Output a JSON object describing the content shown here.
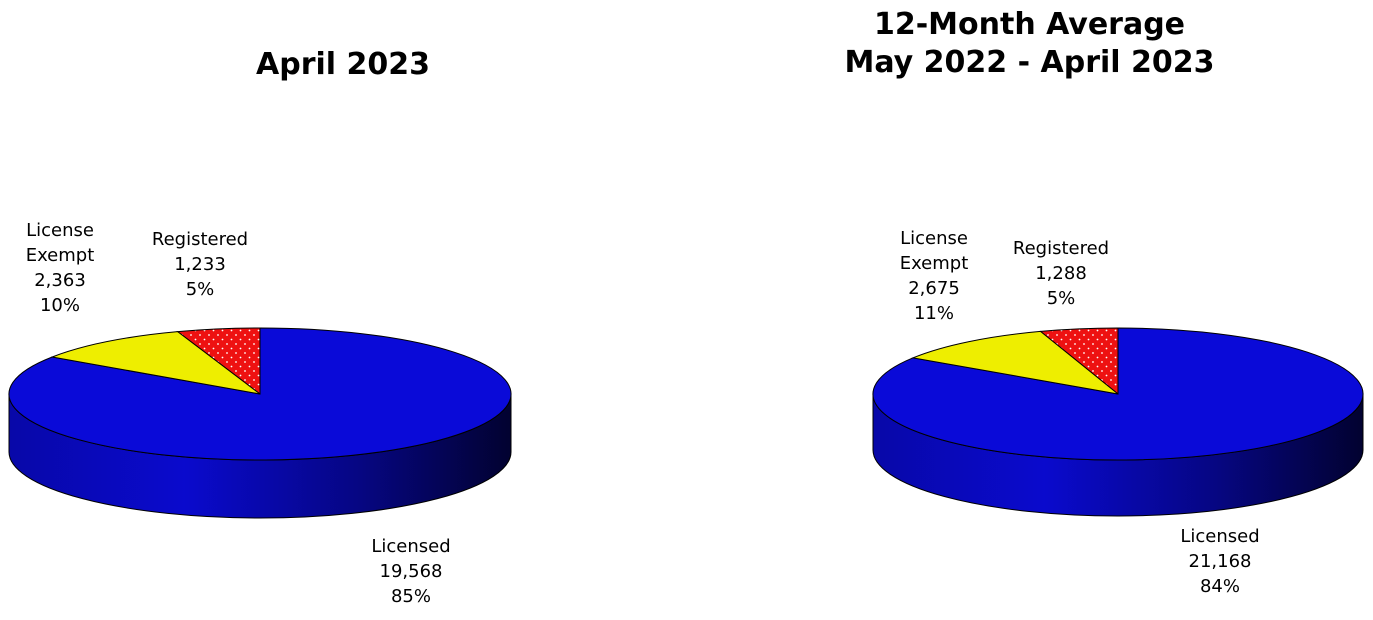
{
  "colors": {
    "Licensed": "#0a0ad8",
    "License Exempt": "#eeee00",
    "Registered": "#ee1111"
  },
  "chart_data": [
    {
      "type": "pie",
      "title": "April 2023",
      "slices": [
        {
          "name": "Registered",
          "value": 1233,
          "percent": "5%",
          "label_lines": [
            "Registered",
            "1,233",
            "5%"
          ]
        },
        {
          "name": "Licensed",
          "value": 19568,
          "percent": "85%",
          "label_lines": [
            "Licensed",
            "19,568",
            "85%"
          ]
        },
        {
          "name": "License Exempt",
          "value": 2363,
          "percent": "10%",
          "label_lines": [
            "License",
            "Exempt",
            "2,363",
            "10%"
          ]
        }
      ]
    },
    {
      "type": "pie",
      "title": "12-Month Average\nMay 2022 - April 2023",
      "title_lines": [
        "12-Month Average",
        "May 2022 - April 2023"
      ],
      "slices": [
        {
          "name": "Registered",
          "value": 1288,
          "percent": "5%",
          "label_lines": [
            "Registered",
            "1,288",
            "5%"
          ]
        },
        {
          "name": "Licensed",
          "value": 21168,
          "percent": "84%",
          "label_lines": [
            "Licensed",
            "21,168",
            "84%"
          ]
        },
        {
          "name": "License Exempt",
          "value": 2675,
          "percent": "11%",
          "label_lines": [
            "License",
            "Exempt",
            "2,675",
            "11%"
          ]
        }
      ]
    }
  ]
}
